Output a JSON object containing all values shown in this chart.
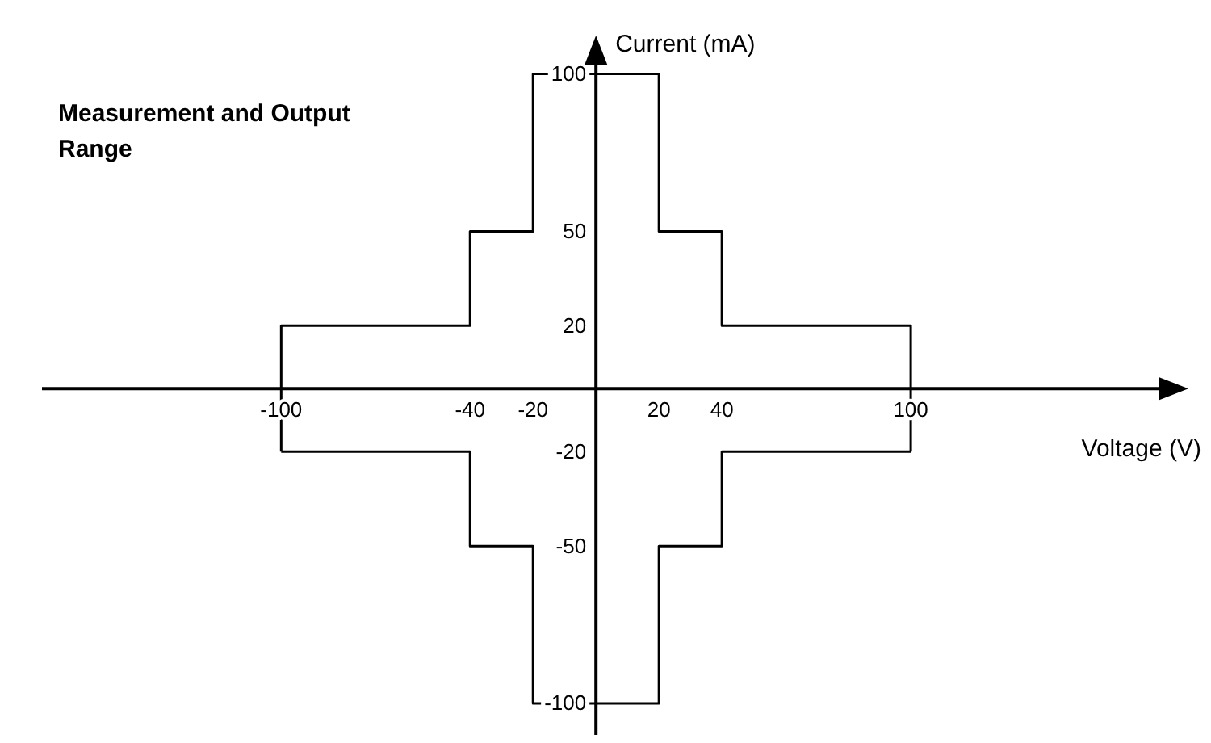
{
  "chart_data": {
    "type": "line",
    "title": "Measurement and Output Range",
    "xlabel": "Voltage (V)",
    "ylabel": "Current (mA)",
    "series": [
      {
        "color": "#000000",
        "x": [
          -100,
          -100,
          -40,
          -40,
          -20,
          -20,
          20,
          20,
          40,
          40,
          100,
          100
        ],
        "values": [
          -20,
          20,
          20,
          50,
          50,
          100,
          100,
          50,
          50,
          20,
          20,
          -20
        ]
      },
      {
        "color": "#000000",
        "x": [
          -100,
          -40,
          -40,
          -20,
          -20,
          20,
          20,
          40,
          40,
          100
        ],
        "values": [
          -20,
          -20,
          -50,
          -50,
          -100,
          -100,
          -50,
          -50,
          -20,
          -20
        ]
      }
    ],
    "xlim": [
      -176,
      180
    ],
    "ylim": [
      -110,
      104
    ],
    "xticks": [
      -100,
      -40,
      -20,
      20,
      40,
      100
    ],
    "yticks": [
      -100,
      -50,
      -20,
      20,
      50,
      100
    ],
    "grid": false,
    "legend": false,
    "marker": "none",
    "line_style": "solid"
  }
}
